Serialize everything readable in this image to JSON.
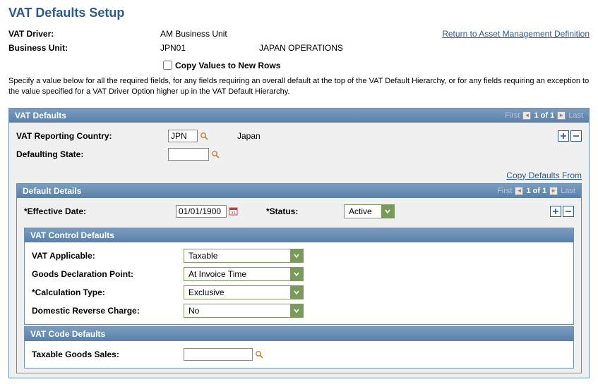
{
  "page": {
    "title": "VAT Defaults Setup"
  },
  "header": {
    "vat_driver_label": "VAT Driver:",
    "vat_driver_value": "AM Business Unit",
    "business_unit_label": "Business Unit:",
    "business_unit_value": "JPN01",
    "business_unit_desc": "JAPAN OPERATIONS",
    "return_link": "Return to Asset Management Definition",
    "copy_values_label": "Copy Values to New Rows",
    "copy_values_checked": false,
    "instructions": "Specify a value below for all the required fields, for any fields requiring an overall default at the top of the VAT Default Hierarchy, or for any fields requiring an exception to the value specified for a VAT Driver Option higher up in the VAT Default Hierarchy."
  },
  "nav": {
    "first": "First",
    "position": "1 of 1",
    "last": "Last"
  },
  "vat_defaults": {
    "section_title": "VAT Defaults",
    "reporting_country_label": "VAT Reporting Country:",
    "reporting_country_value": "JPN",
    "reporting_country_name": "Japan",
    "defaulting_state_label": "Defaulting State:",
    "defaulting_state_value": "",
    "copy_defaults_from": "Copy Defaults From"
  },
  "default_details": {
    "section_title": "Default Details",
    "effective_date_label": "*Effective Date:",
    "effective_date_value": "01/01/1900",
    "status_label": "*Status:",
    "status_value": "Active"
  },
  "vat_control_defaults": {
    "section_title": "VAT Control Defaults",
    "rows": [
      {
        "label": "VAT Applicable:",
        "value": "Taxable"
      },
      {
        "label": "Goods Declaration Point:",
        "value": "At Invoice Time"
      },
      {
        "label": "*Calculation Type:",
        "value": "Exclusive"
      },
      {
        "label": "Domestic Reverse Charge:",
        "value": "No"
      }
    ]
  },
  "vat_code_defaults": {
    "section_title": "VAT Code Defaults",
    "taxable_goods_sales_label": "Taxable Goods Sales:",
    "taxable_goods_sales_value": ""
  },
  "colors": {
    "title_color": "#2b5a8c",
    "link_color": "#2b5a8c",
    "header_grad_top": "#7a9cc0",
    "header_grad_bottom": "#5a80a8",
    "section_bg": "#f0f0f0",
    "select_border": "#7a9a5a",
    "select_btn": "#7a9a5a"
  }
}
